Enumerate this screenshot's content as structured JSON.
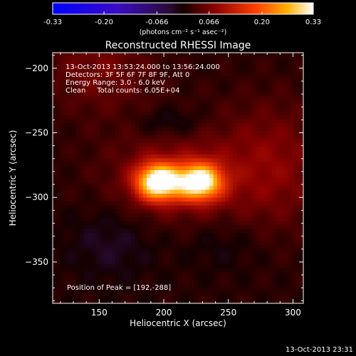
{
  "chart_data": {
    "type": "heatmap",
    "title": "Reconstructed RHESSI Image",
    "xlabel": "Heliocentric X (arcsec)",
    "ylabel": "Heliocentric Y (arcsec)",
    "xlim": [
      114,
      308
    ],
    "ylim": [
      -382,
      -188
    ],
    "x_ticks": [
      150,
      200,
      250,
      300
    ],
    "y_ticks": [
      -200,
      -250,
      -300,
      -350
    ],
    "colorbar": {
      "min": -0.33,
      "max": 0.33,
      "ticks": [
        {
          "value": -0.33,
          "label": "-0.33"
        },
        {
          "value": -0.2,
          "label": "-0.20"
        },
        {
          "value": -0.066,
          "label": "-0.066"
        },
        {
          "value": 0.066,
          "label": "0.066"
        },
        {
          "value": 0.2,
          "label": "0.20"
        },
        {
          "value": 0.33,
          "label": "0.33"
        }
      ],
      "units_label": "(photons cm⁻² s⁻¹ asec⁻²)"
    },
    "info_lines": [
      "13-Oct-2013 13:53:24.000 to 13:56:24.000",
      "Detectors: 3F 5F 6F 7F 8F 9F, Att 0",
      "Energy Range: 3.0 - 6.0 keV",
      "Clean     Total counts: 6.05E+04"
    ],
    "peak_text": "Position of Peak = [192,-288]",
    "peak": {
      "x": 192,
      "y": -288
    },
    "sources": [
      {
        "x": 196,
        "y": -288,
        "sx": 12,
        "sy": 10,
        "amp": 0.33
      },
      {
        "x": 228,
        "y": -288,
        "sx": 12,
        "sy": 10,
        "amp": 0.31
      },
      {
        "x": 210,
        "y": -284,
        "sx": 40,
        "sy": 28,
        "amp": 0.06
      },
      {
        "x": 150,
        "y": -200,
        "sx": 30,
        "sy": 25,
        "amp": 0.05
      },
      {
        "x": 285,
        "y": -275,
        "sx": 30,
        "sy": 35,
        "amp": 0.06
      },
      {
        "x": 205,
        "y": -242,
        "sx": 18,
        "sy": 8,
        "amp": -0.04
      },
      {
        "x": 160,
        "y": -335,
        "sx": 25,
        "sy": 20,
        "amp": -0.035
      },
      {
        "x": 245,
        "y": -335,
        "sx": 22,
        "sy": 15,
        "amp": -0.025
      }
    ]
  },
  "footer_timestamp": "13-Oct-2013 23:31"
}
